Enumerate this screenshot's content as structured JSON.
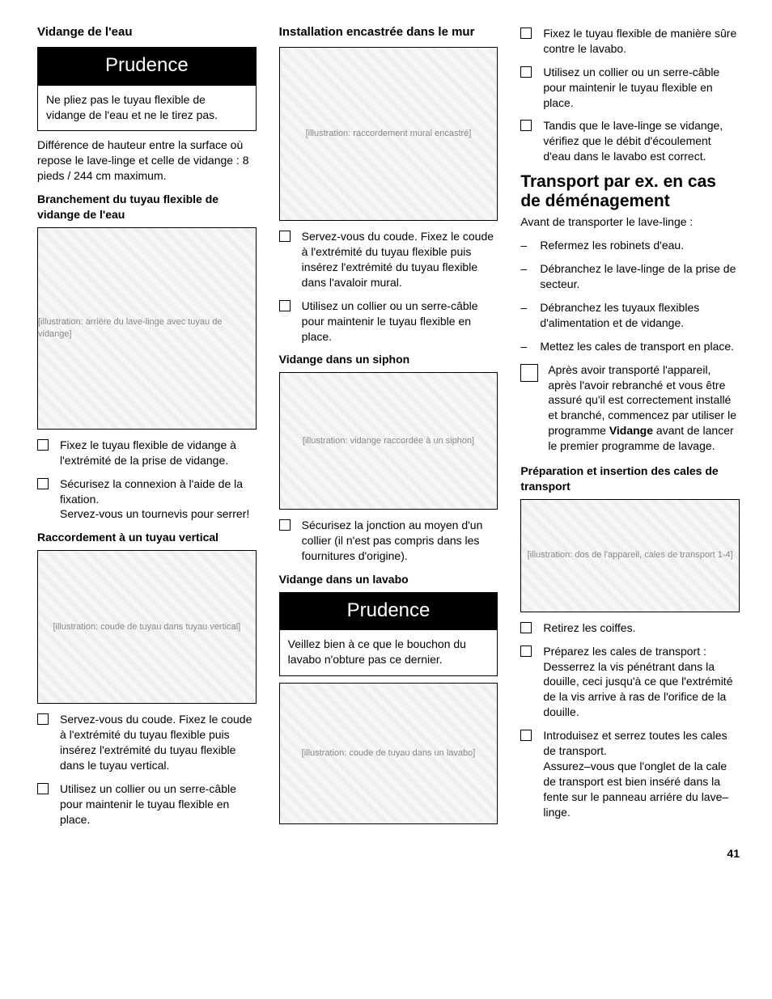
{
  "page_number": "41",
  "col1": {
    "h1": "Vidange de l'eau",
    "warn1_title": "Prudence",
    "warn1_body": "Ne pliez pas le tuyau flexible de vidange de l'eau et ne le tirez pas.",
    "p1": "Différence de hauteur entre la surface où repose le lave-linge et celle de vidange : 8 pieds / 244 cm maximum.",
    "h2": "Branchement du tuyau flexible de vidange de l'eau",
    "fig1_alt": "[illustration: arrière du lave-linge avec tuyau de vidange]",
    "list1": [
      "Fixez le tuyau flexible de vidange à l'extrémité de la prise de vidange.",
      "Sécurisez la connexion à l'aide de la fixation.\nServez-vous un tournevis pour serrer!"
    ],
    "h3": "Raccordement à un tuyau vertical",
    "fig2_alt": "[illustration: coude de tuyau dans tuyau vertical]",
    "list2": [
      "Servez-vous du coude. Fixez le coude à l'extrémité du tuyau flexible puis insérez l'extrémité du tuyau flexible dans le tuyau vertical.",
      "Utilisez un collier ou un serre-câble pour maintenir le tuyau flexible en place."
    ]
  },
  "col2": {
    "h1": "Installation encastrée dans le mur",
    "fig1_alt": "[illustration: raccordement mural encastré]",
    "list1": [
      "Servez-vous du coude. Fixez le coude à l'extrémité du tuyau flexible puis insérez l'extrémité du tuyau flexible dans l'avaloir mural.",
      "Utilisez un collier ou un serre-câble pour maintenir le tuyau flexible en place."
    ],
    "h2": "Vidange dans un siphon",
    "fig2_alt": "[illustration: vidange raccordée à un siphon]",
    "list2": [
      "Sécurisez la jonction au moyen d'un collier (il n'est pas compris dans les fournitures d'origine)."
    ],
    "h3": "Vidange dans un lavabo",
    "warn2_title": "Prudence",
    "warn2_body": "Veillez bien à ce que le bouchon du lavabo n'obture pas ce dernier.",
    "fig3_alt": "[illustration: coude de tuyau dans un lavabo]"
  },
  "col3": {
    "list1": [
      "Fixez le tuyau flexible de manière sûre contre le lavabo.",
      "Utilisez un collier ou un serre-câble pour maintenir le tuyau flexible en place.",
      "Tandis que le lave-linge se vidange, vérifiez que le débit d'écoulement d'eau dans le lavabo est correct."
    ],
    "h_big": "Transport par ex. en cas de déménagement",
    "p1": "Avant de transporter le lave-linge :",
    "dashlist": [
      "Refermez les robinets d'eau.",
      "Débranchez le lave-linge de la prise de secteur.",
      "Débranchez les tuyaux flexibles d'alimentation et de vidange.",
      "Mettez les cales de transport en place."
    ],
    "note_pre": "Après avoir transporté l'appareil, après l'avoir rebranché et vous être assuré qu'il est correctement installé et branché, commencez par utiliser le programme ",
    "note_bold": "Vidange",
    "note_post": " avant de lancer le premier programme de lavage.",
    "h2": "Préparation et insertion des cales de transport",
    "fig1_alt": "[illustration: dos de l'appareil, cales de transport 1-4]",
    "list2": [
      "Retirez les coiffes.",
      "Préparez les cales de transport :\nDesserrez la vis pénétrant dans la douille, ceci jusqu'à ce que l'extrémité de la vis arrive à ras de l'orifice de la douille.",
      "Introduisez et serrez toutes les cales de transport.\nAssurez–vous que l'onglet de la cale de transport est bien inséré dans la fente sur le panneau arriére du lave–linge."
    ]
  }
}
